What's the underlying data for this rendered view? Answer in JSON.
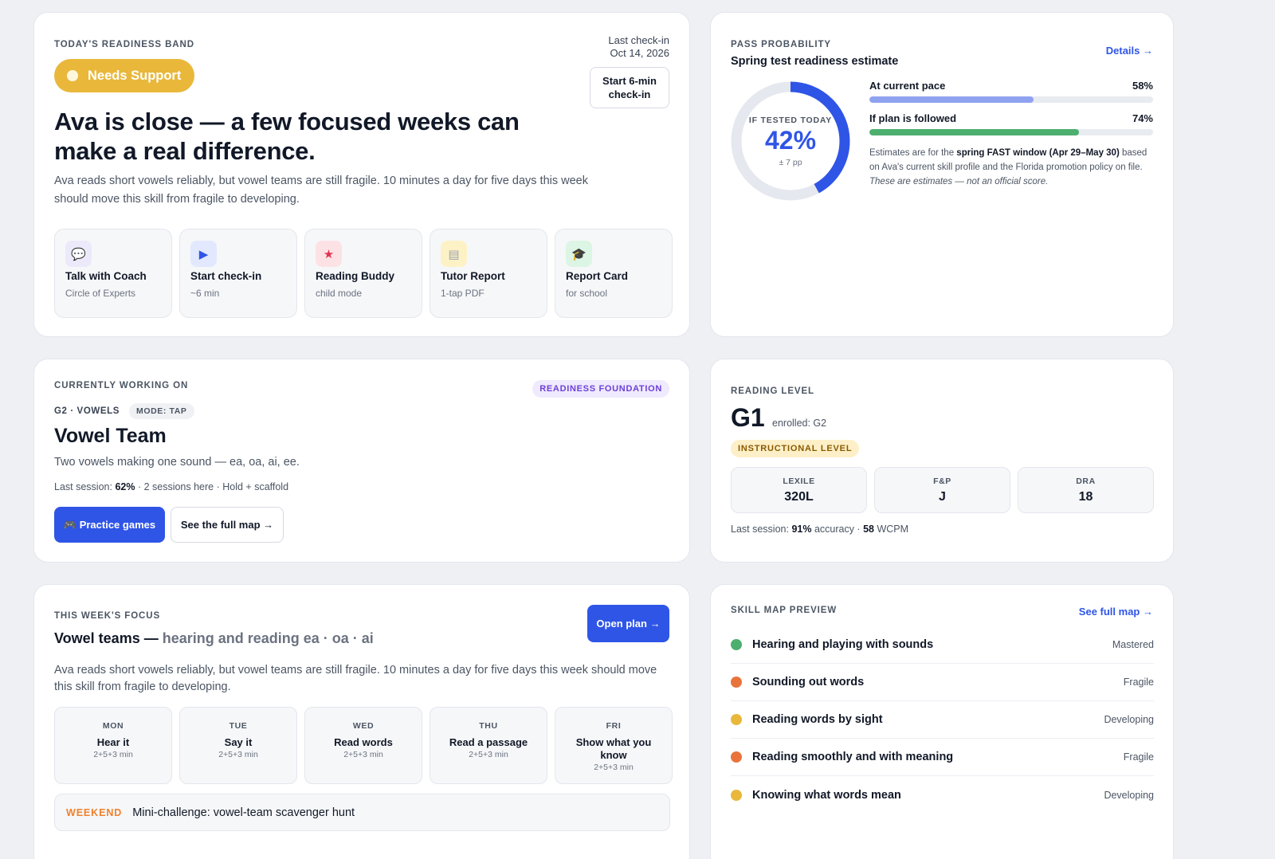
{
  "readiness": {
    "eyebrow": "Today's readiness band",
    "band": "Needs Support",
    "last_checkin_label": "Last check-in",
    "last_checkin_date": "Oct 14, 2026",
    "checkin_button": "Start 6-min check-in",
    "headline": "Ava is close — a few focused weeks can make a real difference.",
    "description": "Ava reads short vowels reliably, but vowel teams are still fragile. 10 minutes a day for five days this week should move this skill from fragile to developing.",
    "actions": [
      {
        "title": "Talk with Coach",
        "subtitle": "Circle of Experts",
        "icon": "chat-bubble-icon",
        "glyph": "💬",
        "bg": "#ece9fb",
        "color": "#6b7280"
      },
      {
        "title": "Start check-in",
        "subtitle": "~6 min",
        "icon": "play-icon",
        "glyph": "▶",
        "bg": "#e2e8fd",
        "color": "#2f55e6"
      },
      {
        "title": "Reading Buddy",
        "subtitle": "child mode",
        "icon": "star-icon",
        "glyph": "★",
        "bg": "#fde2e5",
        "color": "#e0334f"
      },
      {
        "title": "Tutor Report",
        "subtitle": "1-tap PDF",
        "icon": "document-icon",
        "glyph": "▤",
        "bg": "#fdf2c6",
        "color": "#9ca3af"
      },
      {
        "title": "Report Card",
        "subtitle": "for school",
        "icon": "graduation-cap-icon",
        "glyph": "🎓",
        "bg": "#dcf5e4",
        "color": "#111827"
      }
    ]
  },
  "pass_probability": {
    "eyebrow": "Pass probability",
    "title": "Spring test readiness estimate",
    "details_link": "Details →",
    "donut_label": "IF TESTED TODAY",
    "donut_value": "42%",
    "donut_percent": 42,
    "donut_margin": "± 7 pp",
    "bars": [
      {
        "label": "At current pace",
        "pct_text": "58%",
        "pct": 58,
        "color": "#8fa2f0"
      },
      {
        "label": "If plan is followed",
        "pct_text": "74%",
        "pct": 74,
        "color": "#4caf6e"
      }
    ],
    "estimate_prefix": "Estimates are for the ",
    "estimate_window": "spring FAST window (Apr 29–May 30)",
    "estimate_suffix": " based on Ava's current skill profile and the Florida promotion policy on file.",
    "estimate_disclaimer": "These are estimates — not an official score."
  },
  "working_on": {
    "eyebrow": "Currently working on",
    "badge": "READINESS FOUNDATION",
    "grade_tag": "G2 · VOWELS",
    "mode_tag": "MODE: TAP",
    "title": "Vowel Team",
    "description": "Two vowels making one sound — ea, oa, ai, ee.",
    "session_prefix": "Last session: ",
    "session_score": "62%",
    "session_suffix": " · 2 sessions here · Hold + scaffold",
    "practice_button": "🎮 Practice games",
    "map_button": "See the full map →"
  },
  "reading_level": {
    "eyebrow": "Reading level",
    "level": "G1",
    "enrolled": "enrolled: G2",
    "badge": "INSTRUCTIONAL LEVEL",
    "stats": [
      {
        "key": "LEXILE",
        "value": "320L"
      },
      {
        "key": "F&P",
        "value": "J"
      },
      {
        "key": "DRA",
        "value": "18"
      }
    ],
    "session_prefix": "Last session: ",
    "accuracy": "91%",
    "accuracy_suffix": " accuracy · ",
    "wcpm": "58",
    "wcpm_suffix": " WCPM"
  },
  "week_focus": {
    "eyebrow": "This week's focus",
    "title_main": "Vowel teams — ",
    "title_sub": "hearing and reading ea · oa · ai",
    "open_plan": "Open plan →",
    "description": "Ava reads short vowels reliably, but vowel teams are still fragile. 10 minutes a day for five days this week should move this skill from fragile to developing.",
    "days": [
      {
        "day": "MON",
        "name": "Hear it",
        "minutes": "2+5+3 min"
      },
      {
        "day": "TUE",
        "name": "Say it",
        "minutes": "2+5+3 min"
      },
      {
        "day": "WED",
        "name": "Read words",
        "minutes": "2+5+3 min"
      },
      {
        "day": "THU",
        "name": "Read a passage",
        "minutes": "2+5+3 min"
      },
      {
        "day": "FRI",
        "name": "Show what you know",
        "minutes": "2+5+3 min"
      }
    ],
    "weekend_label": "WEEKEND",
    "weekend_text": "Mini-challenge: vowel-team scavenger hunt"
  },
  "skill_map": {
    "eyebrow": "Skill map preview",
    "link": "See full map →",
    "skills": [
      {
        "name": "Hearing and playing with sounds",
        "status": "Mastered",
        "color": "#4caf6e"
      },
      {
        "name": "Sounding out words",
        "status": "Fragile",
        "color": "#e8743b"
      },
      {
        "name": "Reading words by sight",
        "status": "Developing",
        "color": "#e9b83b"
      },
      {
        "name": "Reading smoothly and with meaning",
        "status": "Fragile",
        "color": "#e8743b"
      },
      {
        "name": "Knowing what words mean",
        "status": "Developing",
        "color": "#e9b83b"
      }
    ]
  }
}
